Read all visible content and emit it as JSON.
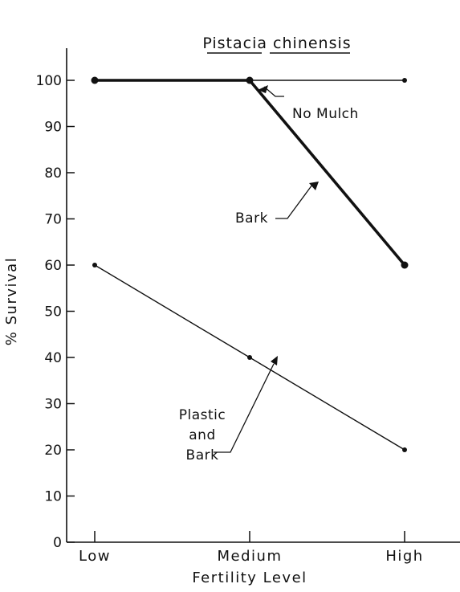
{
  "chart_data": {
    "type": "line",
    "title": "Pistacia chinensis",
    "xlabel": "Fertility Level",
    "ylabel": "% Survival",
    "categories": [
      "Low",
      "Medium",
      "High"
    ],
    "ylim": [
      0,
      100
    ],
    "yticks": [
      0,
      10,
      20,
      30,
      40,
      50,
      60,
      70,
      80,
      90,
      100
    ],
    "grid": false,
    "series": [
      {
        "name": "No Mulch",
        "values": [
          100,
          100,
          100
        ]
      },
      {
        "name": "Bark",
        "values": [
          100,
          100,
          60
        ]
      },
      {
        "name": "Plastic and Bark",
        "values": [
          60,
          40,
          20
        ]
      }
    ],
    "annotations": {
      "no_mulch": "No Mulch",
      "bark": "Bark",
      "plastic_line1": "Plastic",
      "plastic_line2": "and",
      "plastic_line3": "Bark"
    }
  }
}
